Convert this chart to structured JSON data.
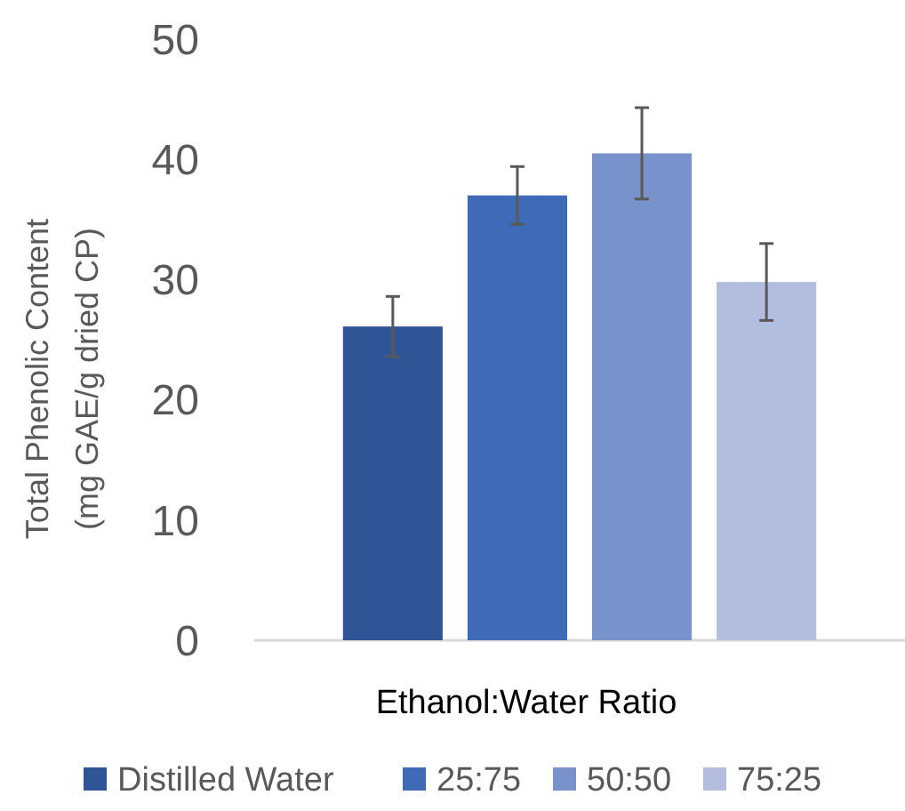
{
  "chart_data": {
    "type": "bar",
    "categories": [
      null
    ],
    "xlabel": "Ethanol:Water Ratio",
    "ylabel": "Total Phenolic Content (mg GAE/g dried CP)",
    "ylim": [
      0,
      50
    ],
    "yticks": [
      0,
      10,
      20,
      30,
      40,
      50
    ],
    "grid": false,
    "legend": "bottom",
    "series": [
      {
        "name": "Distilled Water",
        "color": "#2f5597",
        "values": [
          26.1
        ],
        "errors": [
          2.5
        ]
      },
      {
        "name": "25:75",
        "color": "#3e6ab8",
        "values": [
          37
        ],
        "errors": [
          2.4
        ]
      },
      {
        "name": "50:50",
        "color": "#7892cc",
        "values": [
          40.5
        ],
        "errors": [
          3.8
        ]
      },
      {
        "name": "75:25",
        "color": "#b3bedf",
        "values": [
          29.8
        ],
        "errors": [
          3.2
        ]
      }
    ]
  }
}
